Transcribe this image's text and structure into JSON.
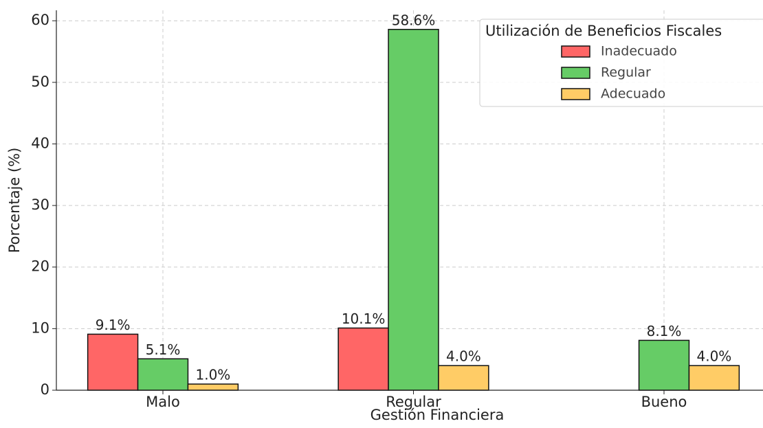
{
  "chart_data": {
    "type": "bar",
    "xlabel": "Gestión Financiera",
    "ylabel": "Porcentaje (%)",
    "categories": [
      "Malo",
      "Regular",
      "Bueno"
    ],
    "series": [
      {
        "name": "Inadecuado",
        "color": "#ff6666",
        "values": [
          9.1,
          10.1,
          null
        ],
        "value_labels": [
          "9.1%",
          "10.1%",
          null
        ]
      },
      {
        "name": "Regular",
        "color": "#66cc66",
        "values": [
          5.1,
          58.6,
          8.1
        ],
        "value_labels": [
          "5.1%",
          "58.6%",
          "8.1%"
        ]
      },
      {
        "name": "Adecuado",
        "color": "#ffcc66",
        "values": [
          1.0,
          4.0,
          4.0
        ],
        "value_labels": [
          "1.0%",
          "4.0%",
          "4.0%"
        ]
      }
    ],
    "legend_title": "Utilización de Beneficios Fiscales",
    "legend": "upper right",
    "ylim": [
      0,
      61.7
    ],
    "yticks": [
      0,
      10,
      20,
      30,
      40,
      50,
      60
    ],
    "grid": true
  }
}
